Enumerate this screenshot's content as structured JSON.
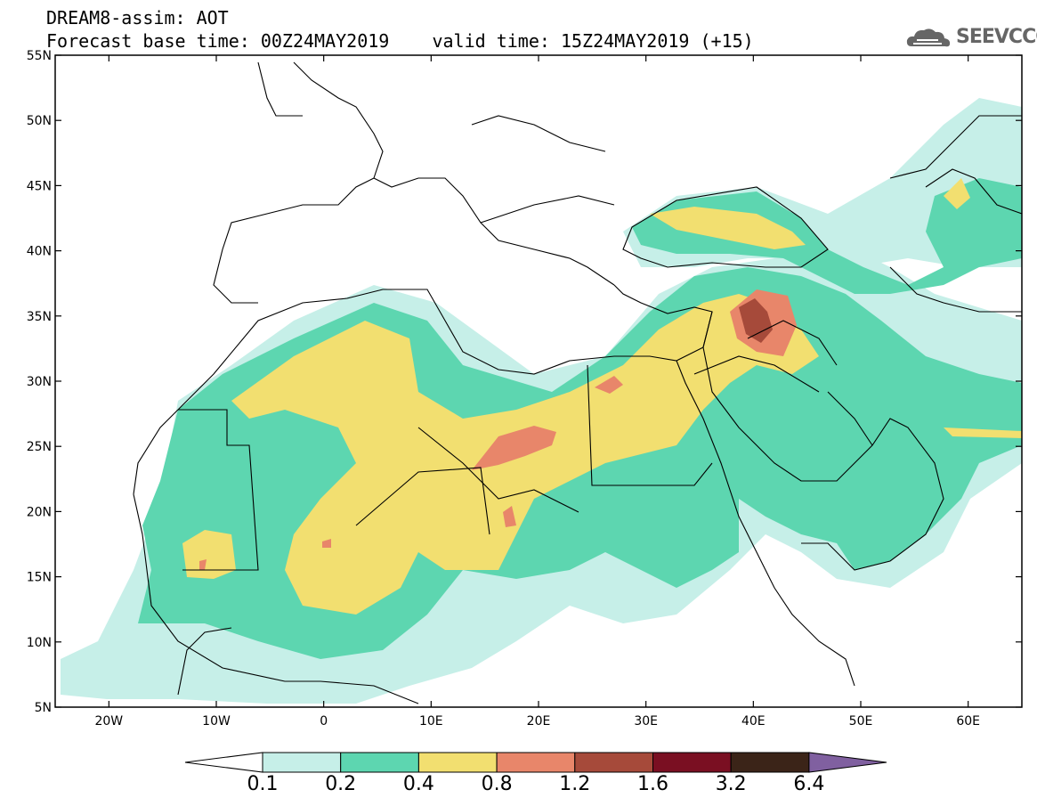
{
  "header": {
    "title": "DREAM8-assim: AOT",
    "forecast_line": "Forecast base time: 00Z24MAY2019    valid time: 15Z24MAY2019 (+15)"
  },
  "logo": {
    "text": "SEEVCCC",
    "icon": "cloud-icon"
  },
  "map": {
    "lon_range": [
      -25,
      65
    ],
    "lat_range": [
      5,
      55
    ],
    "lat_labels": [
      "5N",
      "10N",
      "15N",
      "20N",
      "25N",
      "30N",
      "35N",
      "40N",
      "45N",
      "50N",
      "55N"
    ],
    "lon_labels": [
      "20W",
      "10W",
      "0",
      "10E",
      "20E",
      "30E",
      "40E",
      "50E",
      "60E"
    ]
  },
  "colorbar": {
    "colors": [
      "#ffffff",
      "#c6efe8",
      "#5dd6b0",
      "#f2df70",
      "#e8866a",
      "#a64a3a",
      "#7a0f22",
      "#3b2418",
      "#8060a0"
    ],
    "labels": [
      "0.1",
      "0.2",
      "0.4",
      "0.8",
      "1.2",
      "1.6",
      "3.2",
      "6.4"
    ]
  }
}
